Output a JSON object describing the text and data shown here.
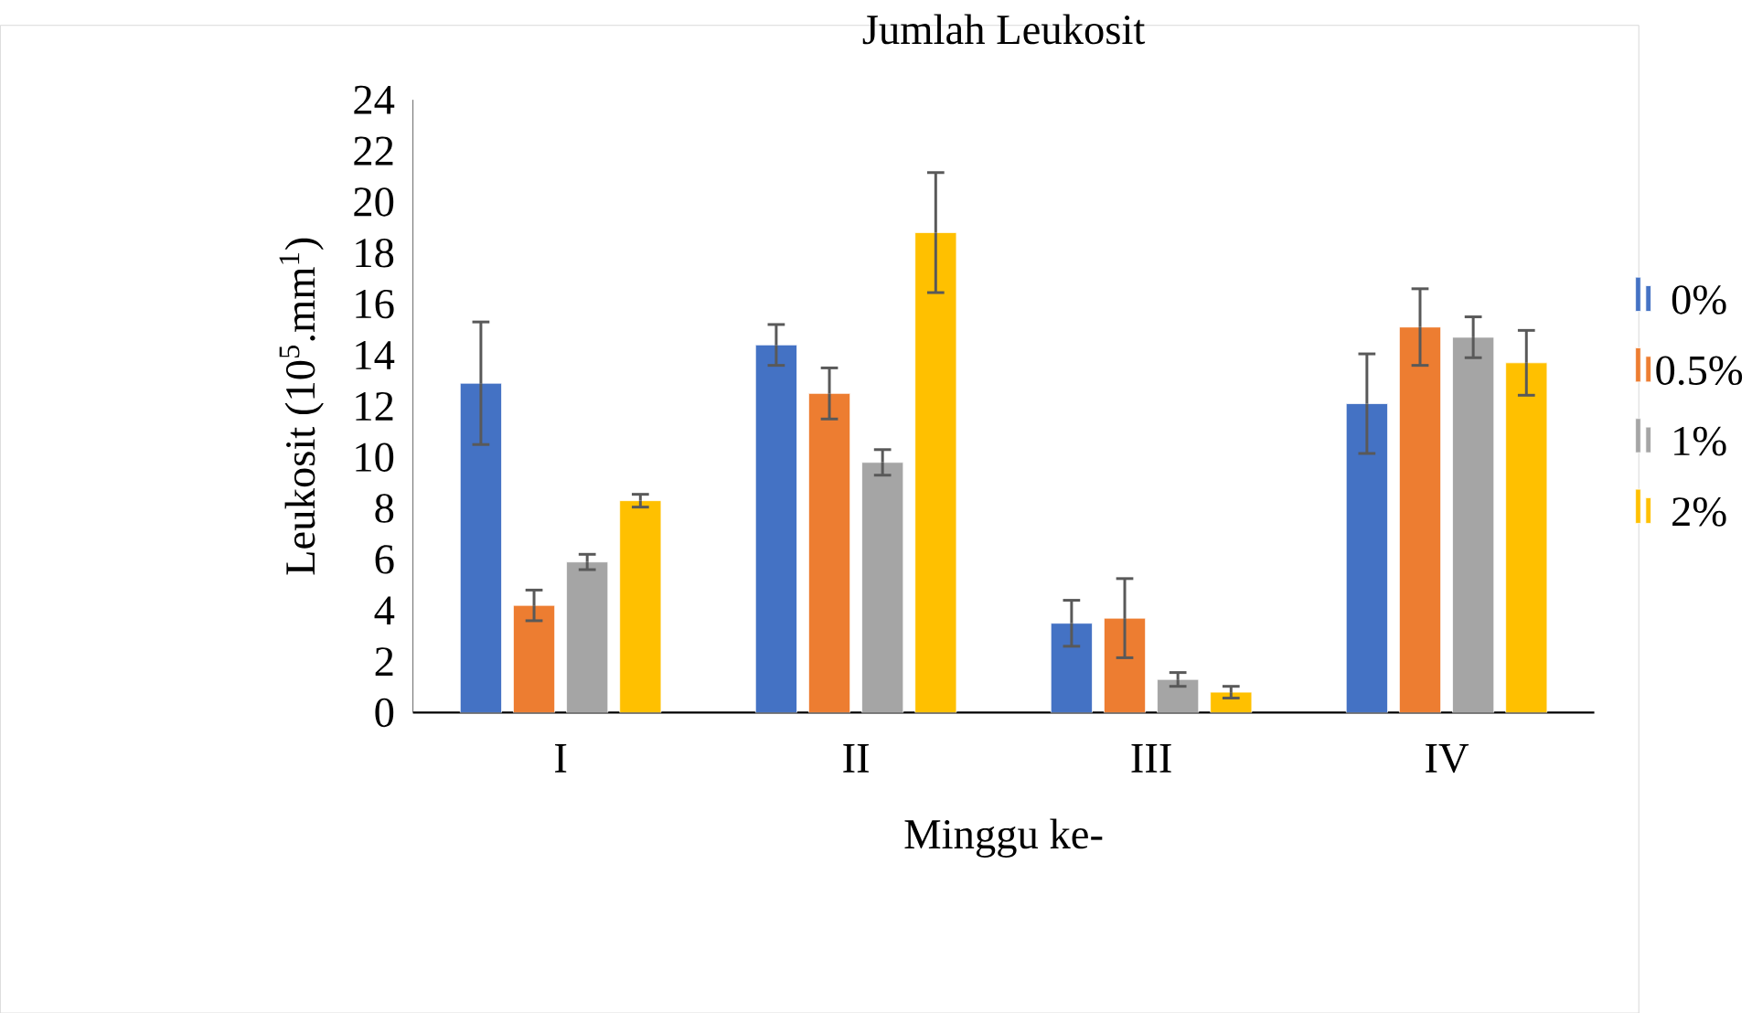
{
  "chart_data": {
    "type": "bar",
    "title": "Jumlah Leukosit",
    "xlabel": "Minggu ke-",
    "ylabel": "Leukosit (10$^{5}$.mm$^{1}$)",
    "categories": [
      "I",
      "II",
      "III",
      "IV"
    ],
    "series": [
      {
        "name": "0%",
        "color": "#4472c4",
        "values": [
          12.9,
          14.4,
          3.5,
          12.1
        ],
        "errors": [
          2.4,
          0.8,
          0.9,
          1.95
        ]
      },
      {
        "name": "0.5%",
        "color": "#ed7d31",
        "values": [
          4.2,
          12.5,
          3.7,
          15.1
        ],
        "errors": [
          0.6,
          1.0,
          1.55,
          1.5
        ]
      },
      {
        "name": "1%",
        "color": "#a5a5a5",
        "values": [
          5.9,
          9.8,
          1.3,
          14.7
        ],
        "errors": [
          0.3,
          0.5,
          0.27,
          0.8
        ]
      },
      {
        "name": "2%",
        "color": "#ffc000",
        "values": [
          8.3,
          18.8,
          0.8,
          13.7
        ],
        "errors": [
          0.25,
          2.35,
          0.23,
          1.27
        ]
      }
    ],
    "ylim": [
      0,
      24
    ],
    "yticks": [
      0,
      2,
      4,
      6,
      8,
      10,
      12,
      14,
      16,
      18,
      20,
      22,
      24
    ],
    "grid": false,
    "legend": "right"
  }
}
